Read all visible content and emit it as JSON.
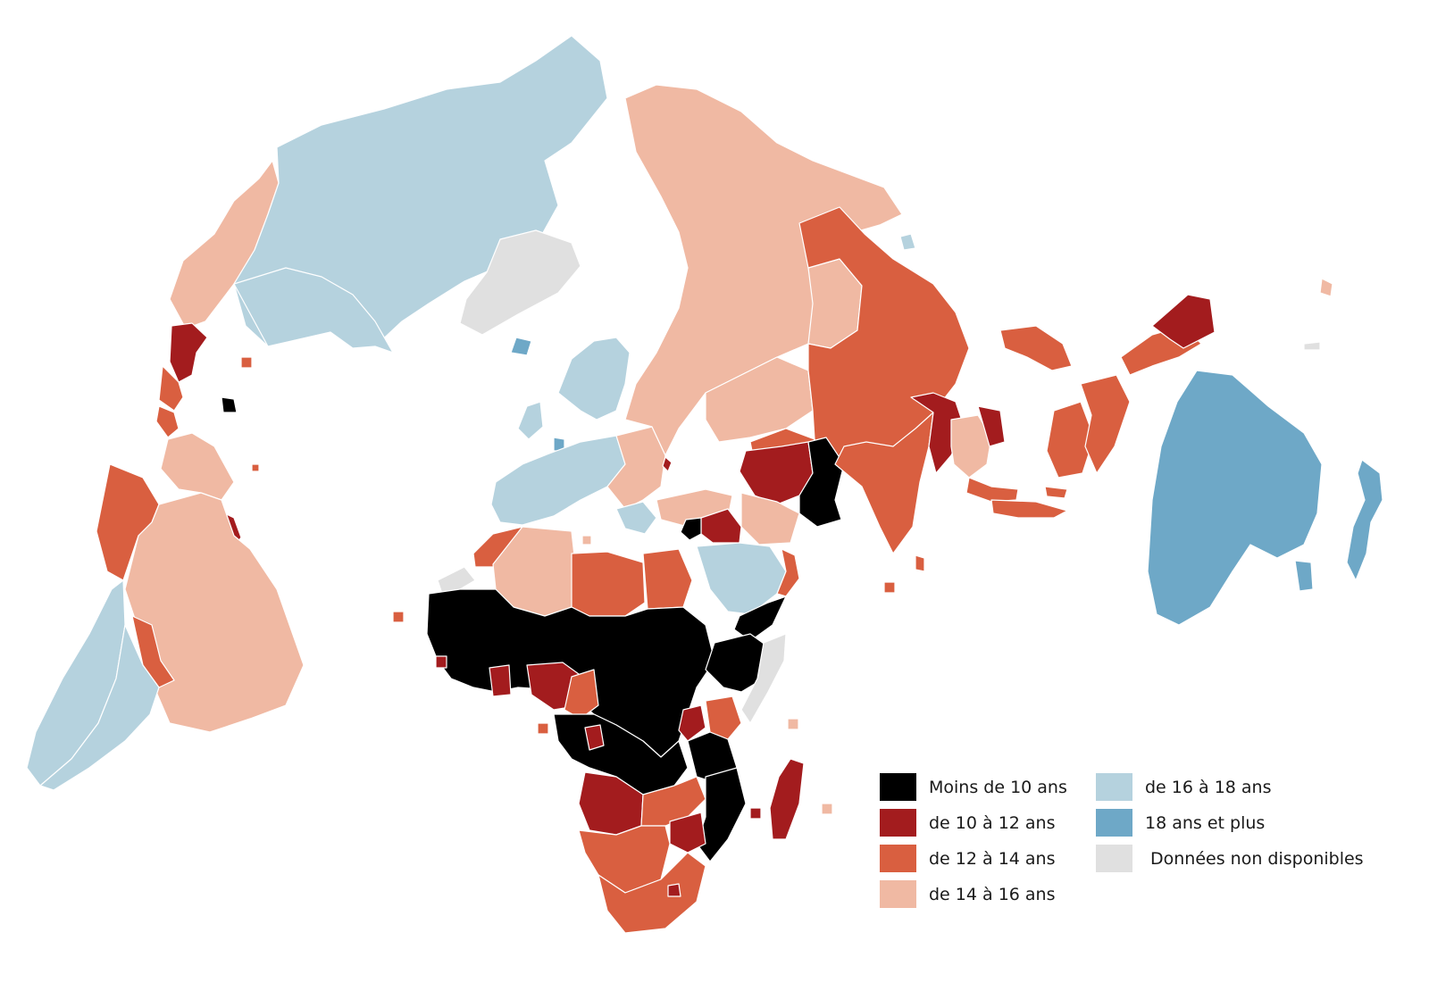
{
  "colors": {
    "under_10": "#000000",
    "10_12": "#a31c1e",
    "12_14": "#d95f40",
    "14_16": "#f0b9a3",
    "16_18": "#b5d2de",
    "18_plus": "#6ea8c7",
    "no_data": "#e0e0e0"
  },
  "legend": [
    {
      "label": "Moins de 10 ans",
      "color": "#000000"
    },
    {
      "label": "de 10 à 12 ans",
      "color": "#a31c1e"
    },
    {
      "label": "de 12 à 14 ans",
      "color": "#d95f40"
    },
    {
      "label": "de 14 à 16 ans",
      "color": "#f0b9a3"
    },
    {
      "label": "de 16 à 18 ans",
      "color": "#b5d2de"
    },
    {
      "label": "18 ans et plus",
      "color": "#6ea8c7"
    },
    {
      "label": "Données non disponibles",
      "color": "#e0e0e0"
    }
  ]
}
